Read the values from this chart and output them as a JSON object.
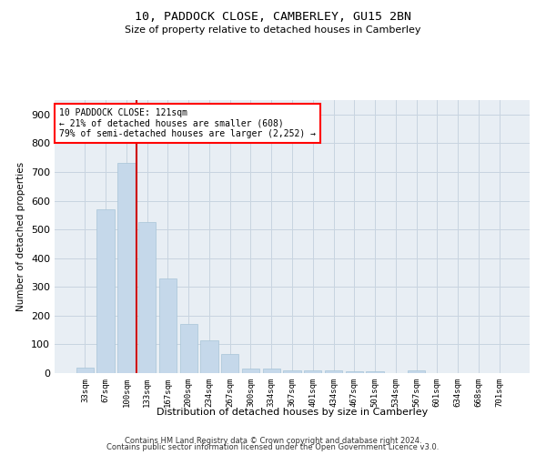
{
  "title1": "10, PADDOCK CLOSE, CAMBERLEY, GU15 2BN",
  "title2": "Size of property relative to detached houses in Camberley",
  "xlabel": "Distribution of detached houses by size in Camberley",
  "ylabel": "Number of detached properties",
  "footnote1": "Contains HM Land Registry data © Crown copyright and database right 2024.",
  "footnote2": "Contains public sector information licensed under the Open Government Licence v3.0.",
  "annotation_title": "10 PADDOCK CLOSE: 121sqm",
  "annotation_line1": "← 21% of detached houses are smaller (608)",
  "annotation_line2": "79% of semi-detached houses are larger (2,252) →",
  "property_line_x": 2.5,
  "bar_labels": [
    "33sqm",
    "67sqm",
    "100sqm",
    "133sqm",
    "167sqm",
    "200sqm",
    "234sqm",
    "267sqm",
    "300sqm",
    "334sqm",
    "367sqm",
    "401sqm",
    "434sqm",
    "467sqm",
    "501sqm",
    "534sqm",
    "567sqm",
    "601sqm",
    "634sqm",
    "668sqm",
    "701sqm"
  ],
  "bar_values": [
    20,
    570,
    730,
    525,
    330,
    170,
    113,
    68,
    17,
    15,
    10,
    10,
    8,
    6,
    5,
    0,
    8,
    0,
    0,
    0,
    0
  ],
  "bar_color": "#c5d8ea",
  "bar_edge_color": "#a8c4d8",
  "line_color": "#cc0000",
  "ylim": [
    0,
    950
  ],
  "yticks": [
    0,
    100,
    200,
    300,
    400,
    500,
    600,
    700,
    800,
    900
  ],
  "grid_color": "#c8d4e0",
  "bg_color": "#e8eef4"
}
